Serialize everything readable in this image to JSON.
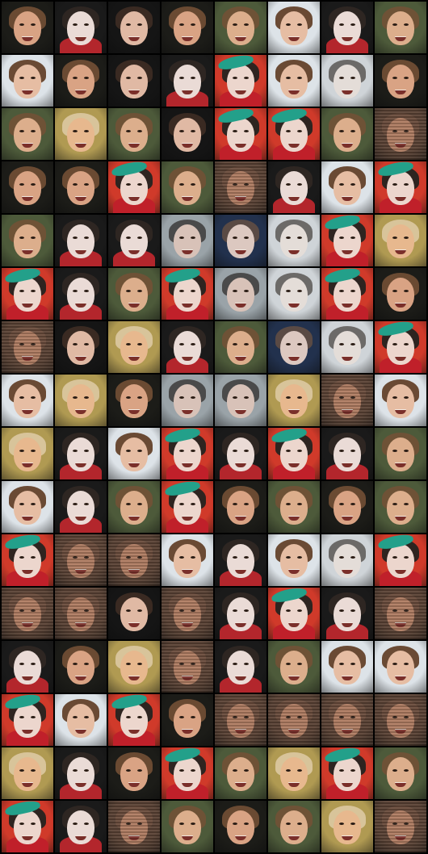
{
  "grid": {
    "columns": 8,
    "rows": 16
  },
  "palettes": {
    "man_dark": {
      "bg": "#1c1c18",
      "face": "#d9a384",
      "hair": "#6a4a32"
    },
    "man_light": {
      "bg": "#c9d3d8",
      "face": "#e0b295",
      "hair": "#7a5a3a"
    },
    "man_green": {
      "bg": "#4d5a3a",
      "face": "#dcae8c",
      "hair": "#6e5236"
    },
    "man_blonde": {
      "bg": "#b09a52",
      "face": "#e7b88e",
      "hair": "#d8c49a"
    },
    "woman_dark": {
      "bg": "#151515",
      "face": "#e0b9a4",
      "hair": "#3a2a22"
    },
    "woman_light": {
      "bg": "#dde3e8",
      "face": "#e6bda3",
      "hair": "#6a4a34"
    },
    "woman_red": {
      "bg": "#1a1a1a",
      "face": "#eadbd6",
      "hair": "#2e2622",
      "accent": "#b3262c"
    },
    "hat_colorful": {
      "bg": "#d03a2a",
      "face": "#ecd6cd",
      "hair": "#2e2420",
      "accent": "#c0202a",
      "hat": "#23a08a"
    },
    "blur_gray": {
      "bg": "#9aa3a8",
      "face": "#d8c2b8",
      "hair": "#4a4a4a"
    },
    "blur_blue": {
      "bg": "#22314d",
      "face": "#dcc8c0",
      "hair": "#5a4a44"
    },
    "noisy_brown": {
      "bg": "#5a4234",
      "face": "#b07c62",
      "hair": "#6a4c3c"
    },
    "ghost": {
      "bg": "#cfd4d8",
      "face": "#e4ddd8",
      "hair": "#6c6a68"
    }
  },
  "tiles": [
    [
      "man_dark",
      "woman_red",
      "woman_dark",
      "man_dark",
      "man_green",
      "woman_light",
      "woman_red",
      "man_green"
    ],
    [
      "woman_light",
      "man_dark",
      "woman_dark",
      "woman_red",
      "hat_colorful",
      "woman_light",
      "ghost",
      "man_dark"
    ],
    [
      "man_green",
      "man_blonde",
      "man_green",
      "woman_dark",
      "hat_colorful",
      "hat_colorful",
      "man_green",
      "noisy_brown"
    ],
    [
      "man_dark",
      "man_dark",
      "hat_colorful",
      "man_green",
      "noisy_brown",
      "woman_red",
      "woman_light",
      "hat_colorful"
    ],
    [
      "man_green",
      "woman_red",
      "woman_red",
      "blur_gray",
      "blur_blue",
      "ghost",
      "hat_colorful",
      "man_blonde"
    ],
    [
      "hat_colorful",
      "woman_red",
      "man_green",
      "hat_colorful",
      "blur_gray",
      "ghost",
      "hat_colorful",
      "man_dark"
    ],
    [
      "noisy_brown",
      "woman_dark",
      "man_blonde",
      "woman_red",
      "man_green",
      "blur_blue",
      "ghost",
      "hat_colorful"
    ],
    [
      "woman_light",
      "man_blonde",
      "man_dark",
      "blur_gray",
      "blur_gray",
      "man_blonde",
      "noisy_brown",
      "woman_light"
    ],
    [
      "man_blonde",
      "woman_red",
      "woman_light",
      "hat_colorful",
      "woman_red",
      "hat_colorful",
      "woman_red",
      "man_green"
    ],
    [
      "woman_light",
      "woman_red",
      "man_green",
      "hat_colorful",
      "man_dark",
      "man_green",
      "man_dark",
      "man_green"
    ],
    [
      "hat_colorful",
      "noisy_brown",
      "noisy_brown",
      "woman_light",
      "woman_red",
      "woman_light",
      "ghost",
      "hat_colorful"
    ],
    [
      "noisy_brown",
      "noisy_brown",
      "woman_dark",
      "noisy_brown",
      "woman_red",
      "hat_colorful",
      "woman_red",
      "noisy_brown"
    ],
    [
      "woman_red",
      "man_dark",
      "man_blonde",
      "noisy_brown",
      "woman_red",
      "man_green",
      "woman_light",
      "woman_light"
    ],
    [
      "hat_colorful",
      "woman_light",
      "hat_colorful",
      "man_dark",
      "noisy_brown",
      "noisy_brown",
      "noisy_brown",
      "noisy_brown"
    ],
    [
      "man_blonde",
      "woman_red",
      "man_dark",
      "hat_colorful",
      "man_green",
      "man_blonde",
      "hat_colorful",
      "man_green"
    ],
    [
      "hat_colorful",
      "woman_red",
      "noisy_brown",
      "man_green",
      "man_dark",
      "man_green",
      "man_blonde",
      "noisy_brown"
    ]
  ]
}
